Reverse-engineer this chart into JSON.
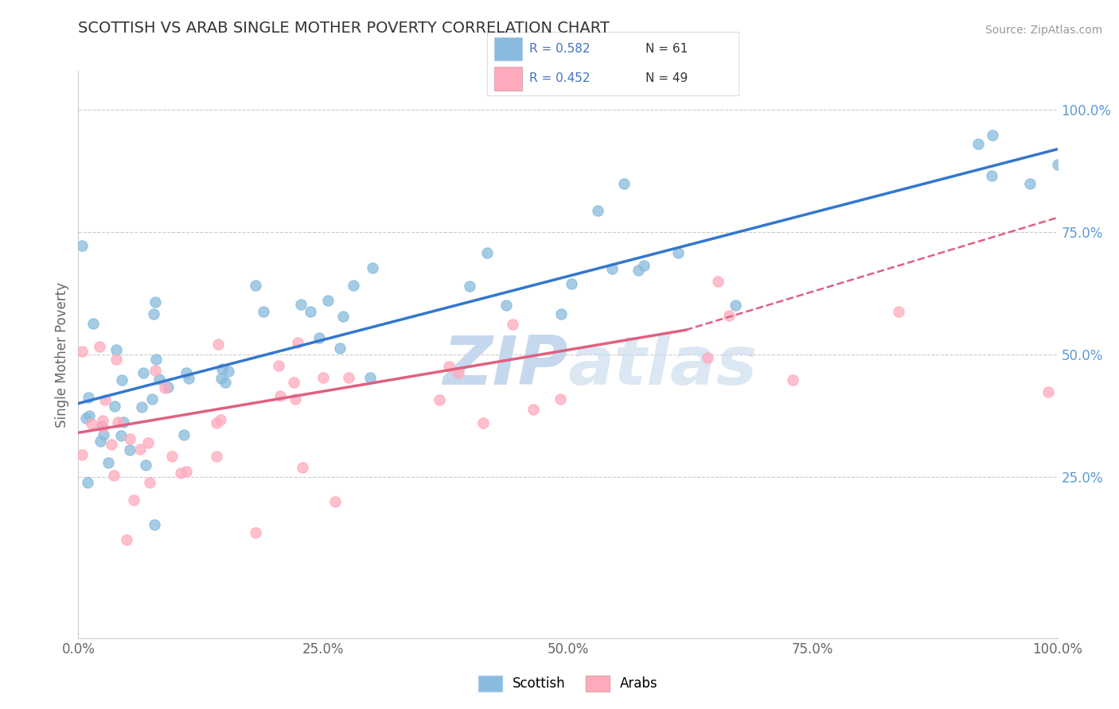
{
  "title": "SCOTTISH VS ARAB SINGLE MOTHER POVERTY CORRELATION CHART",
  "source": "Source: ZipAtlas.com",
  "ylabel": "Single Mother Poverty",
  "scottish_R": 0.582,
  "scottish_N": 61,
  "arab_R": 0.452,
  "arab_N": 49,
  "scottish_dot_color": "#88bbdd",
  "arab_dot_color": "#ffaabc",
  "trendline_scottish_color": "#3377cc",
  "trendline_arab_color": "#e06080",
  "trendline_dashed_color": "#e06080",
  "background_color": "#ffffff",
  "grid_color": "#cccccc",
  "title_color": "#333333",
  "right_axis_color": "#5b9bd5",
  "legend_text_color": "#4472c4",
  "xlim": [
    0.0,
    1.0
  ],
  "ylim": [
    -0.08,
    1.08
  ],
  "x_ticks": [
    0.0,
    0.25,
    0.5,
    0.75,
    1.0
  ],
  "y_ticks_right": [
    0.25,
    0.5,
    0.75,
    1.0
  ],
  "scottish_line": [
    0.0,
    0.4,
    1.0,
    0.92
  ],
  "arab_line_solid": [
    0.0,
    0.34,
    0.62,
    0.55
  ],
  "arab_line_dashed": [
    0.62,
    0.55,
    1.0,
    0.78
  ],
  "watermark_line1": "ZIP",
  "watermark_line2": "atlas",
  "watermark_color": "#c5d8ee"
}
